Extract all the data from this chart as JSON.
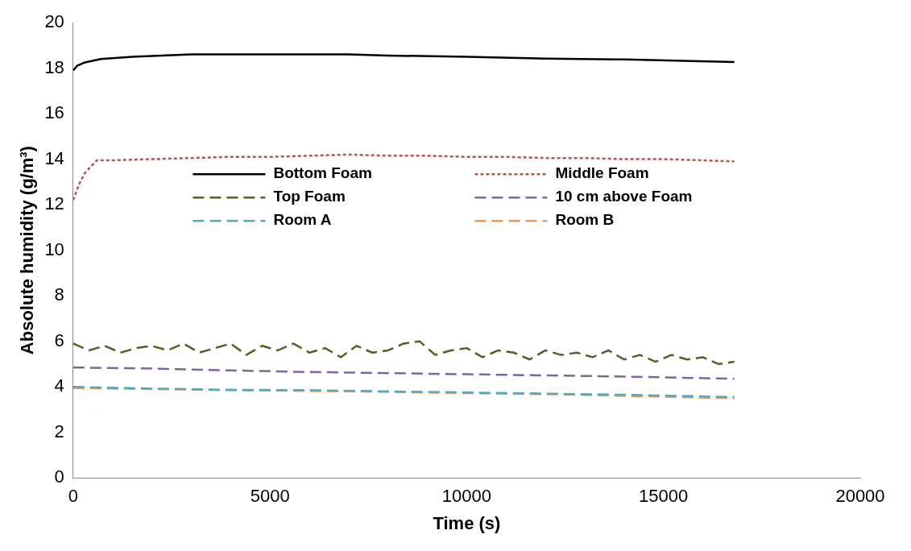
{
  "chart_data": {
    "type": "line",
    "xlabel": "Time (s)",
    "ylabel": "Absolute humidity (g/m³)",
    "xlim": [
      0,
      20000
    ],
    "xticks": [
      0,
      5000,
      10000,
      15000,
      20000
    ],
    "ylim": [
      0,
      20
    ],
    "yticks": [
      0,
      2,
      4,
      6,
      8,
      10,
      12,
      14,
      16,
      18,
      20
    ],
    "grid": false,
    "legend": "center",
    "marker": "none",
    "series": [
      {
        "name": "Bottom Foam",
        "color": "#000000",
        "line_style": "solid",
        "x": [
          0,
          100,
          300,
          700,
          1500,
          3000,
          5000,
          7000,
          8000,
          10000,
          12000,
          14000,
          16800
        ],
        "values": [
          17.9,
          18.1,
          18.25,
          18.4,
          18.5,
          18.6,
          18.6,
          18.6,
          18.55,
          18.5,
          18.42,
          18.38,
          18.27
        ]
      },
      {
        "name": "Middle Foam",
        "color": "#c0504d",
        "line_style": "dotted",
        "x": [
          0,
          150,
          300,
          600,
          1000,
          2000,
          3000,
          4000,
          5000,
          6000,
          7000,
          8000,
          9000,
          10000,
          11000,
          12000,
          13000,
          14000,
          15000,
          16000,
          16800
        ],
        "values": [
          12.2,
          12.9,
          13.4,
          13.95,
          13.95,
          14.0,
          14.05,
          14.1,
          14.1,
          14.15,
          14.2,
          14.15,
          14.15,
          14.1,
          14.1,
          14.05,
          14.05,
          14.0,
          14.0,
          13.95,
          13.9
        ]
      },
      {
        "name": "Top Foam",
        "color": "#4f6228",
        "line_style": "dashed",
        "x": [
          0,
          400,
          800,
          1200,
          1600,
          2000,
          2400,
          2800,
          3200,
          3600,
          4000,
          4400,
          4800,
          5200,
          5600,
          6000,
          6400,
          6800,
          7200,
          7600,
          8000,
          8400,
          8800,
          9200,
          9600,
          10000,
          10400,
          10800,
          11200,
          11600,
          12000,
          12400,
          12800,
          13200,
          13600,
          14000,
          14400,
          14800,
          15200,
          15600,
          16000,
          16400,
          16800
        ],
        "values": [
          5.9,
          5.6,
          5.8,
          5.5,
          5.7,
          5.8,
          5.6,
          5.9,
          5.5,
          5.7,
          5.9,
          5.4,
          5.8,
          5.6,
          5.9,
          5.5,
          5.7,
          5.3,
          5.8,
          5.5,
          5.6,
          5.9,
          6.0,
          5.4,
          5.6,
          5.7,
          5.3,
          5.6,
          5.5,
          5.2,
          5.6,
          5.4,
          5.5,
          5.3,
          5.6,
          5.2,
          5.4,
          5.1,
          5.4,
          5.2,
          5.3,
          5.0,
          5.1
        ]
      },
      {
        "name": "10 cm above Foam",
        "color": "#8064a2",
        "line_style": "dashed",
        "x": [
          0,
          2000,
          4000,
          6000,
          8000,
          10000,
          12000,
          14000,
          16800
        ],
        "values": [
          4.85,
          4.8,
          4.72,
          4.65,
          4.6,
          4.55,
          4.5,
          4.45,
          4.35
        ]
      },
      {
        "name": "Room A",
        "color": "#4bacc6",
        "line_style": "dashed",
        "x": [
          0,
          2000,
          4000,
          6000,
          8000,
          10000,
          12000,
          14000,
          16800
        ],
        "values": [
          4.0,
          3.92,
          3.87,
          3.85,
          3.8,
          3.75,
          3.7,
          3.65,
          3.55
        ]
      },
      {
        "name": "Room B",
        "color": "#f79646",
        "line_style": "dashed",
        "x": [
          0,
          2000,
          4000,
          6000,
          8000,
          10000,
          12000,
          14000,
          16800
        ],
        "values": [
          3.95,
          3.9,
          3.85,
          3.82,
          3.78,
          3.72,
          3.68,
          3.6,
          3.5
        ]
      }
    ]
  }
}
